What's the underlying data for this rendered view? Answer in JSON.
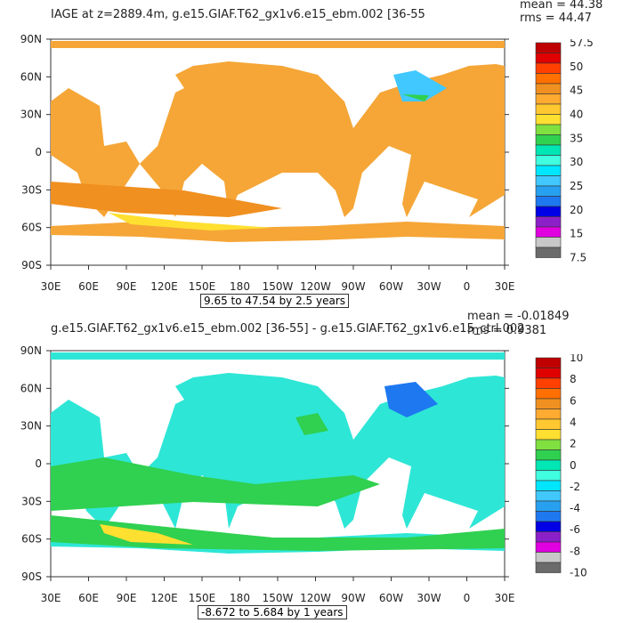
{
  "top": {
    "title": "IAGE at z=2889.4m, g.e15.GIAF.T62_gx1v6.e15_ebm.002 [36-55",
    "mean": "mean = 44.38",
    "rms": "rms = 44.47",
    "range": "9.65 to 47.54 by 2.5 years",
    "colorbar": {
      "colors": [
        "#6b6b6b",
        "#c8c8c8",
        "#e000e0",
        "#8b20c8",
        "#0000e6",
        "#1e78f0",
        "#28a0f0",
        "#40c8ff",
        "#00e6ff",
        "#40ffe0",
        "#00e6b4",
        "#30d050",
        "#80e040",
        "#ffe030",
        "#ffc830",
        "#ffaa30",
        "#f09020",
        "#ff7000",
        "#ff4000",
        "#e00000",
        "#c00000"
      ],
      "labels": [
        "57.5",
        "50",
        "45",
        "40",
        "35",
        "30",
        "25",
        "20",
        "15",
        "7.5"
      ]
    }
  },
  "bottom": {
    "title": "g.e15.GIAF.T62_gx1v6.e15_ebm.002 [36-55] - g.e15.GIAF.T62_gx1v6.e15_ctrl.002",
    "mean": "mean = -0.01849",
    "rms": "rms = 0.9381",
    "range": "-8.672 to 5.684 by 1 years",
    "colorbar": {
      "colors": [
        "#6b6b6b",
        "#c8c8c8",
        "#e000e0",
        "#8b20c8",
        "#0000e6",
        "#1e78f0",
        "#28a0f0",
        "#40c8ff",
        "#00e6ff",
        "#40ffe0",
        "#00e6b4",
        "#30d050",
        "#80e040",
        "#ffe030",
        "#ffc830",
        "#ffaa30",
        "#f09020",
        "#ff7000",
        "#ff4000",
        "#e00000",
        "#c00000"
      ],
      "labels": [
        "10",
        "8",
        "6",
        "4",
        "2",
        "0",
        "-2",
        "-4",
        "-6",
        "-8",
        "-10"
      ]
    }
  },
  "lat_labels": [
    "90N",
    "60N",
    "30N",
    "0",
    "30S",
    "60S",
    "90S"
  ],
  "lon_labels": [
    "30E",
    "60E",
    "90E",
    "120E",
    "150E",
    "180",
    "150W",
    "120W",
    "90W",
    "60W",
    "30W",
    "0",
    "30E"
  ],
  "map_fill": {
    "top": "#f5a637",
    "bottom": "#2ee6d6"
  }
}
